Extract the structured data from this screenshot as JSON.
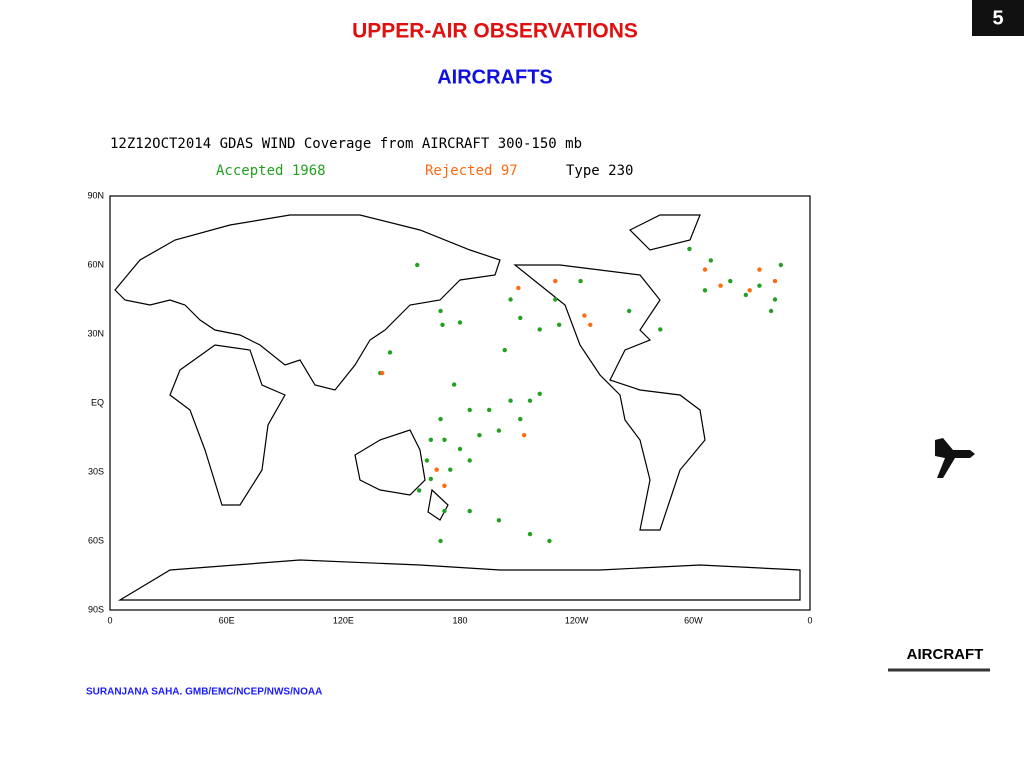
{
  "slide_number": "5",
  "title": "UPPER-AIR OBSERVATIONS",
  "subtitle": "AIRCRAFTS",
  "map": {
    "title": "12Z12OCT2014 GDAS WIND Coverage from AIRCRAFT 300-150 mb",
    "legend": {
      "accepted": "Accepted 1968",
      "rejected": "Rejected 97",
      "type": "Type 230"
    },
    "accepted_color": "#22a022",
    "rejected_color": "#ff6a10",
    "lat_labels": [
      "90N",
      "60N",
      "30N",
      "EQ",
      "30S",
      "60S",
      "90S"
    ],
    "lon_labels": [
      "0",
      "60E",
      "120E",
      "180",
      "120W",
      "60W",
      "0"
    ],
    "accepted": [
      [
        158,
        60
      ],
      [
        170,
        40
      ],
      [
        171,
        34
      ],
      [
        180,
        35
      ],
      [
        144,
        22
      ],
      [
        139,
        13
      ],
      [
        206,
        45
      ],
      [
        211,
        37
      ],
      [
        203,
        23
      ],
      [
        221,
        32
      ],
      [
        229,
        45
      ],
      [
        231,
        34
      ],
      [
        242,
        53
      ],
      [
        267,
        40
      ],
      [
        283,
        32
      ],
      [
        298,
        67
      ],
      [
        309,
        62
      ],
      [
        306,
        49
      ],
      [
        319,
        53
      ],
      [
        334,
        51
      ],
      [
        342,
        45
      ],
      [
        345,
        60
      ],
      [
        340,
        40
      ],
      [
        327,
        47
      ],
      [
        177,
        8
      ],
      [
        170,
        -7
      ],
      [
        165,
        -16
      ],
      [
        163,
        -25
      ],
      [
        159,
        -38
      ],
      [
        170,
        -60
      ],
      [
        172,
        -47
      ],
      [
        185,
        -3
      ],
      [
        195,
        -3
      ],
      [
        200,
        -12
      ],
      [
        211,
        -7
      ],
      [
        216,
        1
      ],
      [
        221,
        4
      ],
      [
        206,
        1
      ],
      [
        190,
        -14
      ],
      [
        180,
        -20
      ],
      [
        175,
        -29
      ],
      [
        185,
        -47
      ],
      [
        200,
        -51
      ],
      [
        216,
        -57
      ],
      [
        226,
        -60
      ],
      [
        165,
        -33
      ],
      [
        185,
        -25
      ],
      [
        172,
        -16
      ]
    ],
    "rejected": [
      [
        140,
        13
      ],
      [
        210,
        50
      ],
      [
        229,
        53
      ],
      [
        244,
        38
      ],
      [
        247,
        34
      ],
      [
        213,
        -14
      ],
      [
        168,
        -29
      ],
      [
        172,
        -36
      ],
      [
        334,
        58
      ],
      [
        342,
        53
      ],
      [
        329,
        49
      ],
      [
        314,
        51
      ],
      [
        306,
        58
      ]
    ]
  },
  "icon_label": "AIRCRAFT",
  "footer": "SURANJANA SAHA. GMB/EMC/NCEP/NWS/NOAA"
}
